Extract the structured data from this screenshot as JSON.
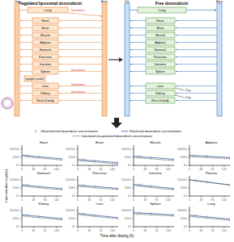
{
  "diagram": {
    "left": {
      "title": "Pegylated liposomal doxorubicin",
      "vein": "Vein",
      "artery": "Artery",
      "lung": {
        "label": "Lung",
        "release_label": "Doxorubicin"
      },
      "nodes": [
        {
          "label": "Heart"
        },
        {
          "label": "Brain"
        },
        {
          "label": "Muscle"
        },
        {
          "label": "Adipose"
        },
        {
          "label": "Stomach"
        },
        {
          "label": "Pancreas"
        },
        {
          "label": "Intestine"
        },
        {
          "label": "Spleen",
          "release_label": "Doxorubicin"
        },
        {
          "label": "Lymph center"
        },
        {
          "label": "Liver",
          "release_label": "Doxorubicin"
        },
        {
          "label": "Kidney",
          "release_label": "Doxorubicin"
        },
        {
          "label": "Rest of body"
        }
      ]
    },
    "right": {
      "title": "Free doxorubicin",
      "vein": "Vein",
      "artery": "Artery",
      "lung": {
        "label": "Lung"
      },
      "nodes": [
        {
          "label": "Heart"
        },
        {
          "label": "Brain"
        },
        {
          "label": "Muscle"
        },
        {
          "label": "Adipose"
        },
        {
          "label": "Stomach"
        },
        {
          "label": "Pancreas"
        },
        {
          "label": "Intestine"
        },
        {
          "label": "Spleen"
        },
        {
          "label": ""
        },
        {
          "label": "Liver",
          "clearance": {
            "main": "CL",
            "sub": "H"
          }
        },
        {
          "label": "Kidney",
          "clearance": {
            "main": "CL",
            "sub": "R"
          }
        },
        {
          "label": "Rest of body"
        }
      ]
    }
  },
  "chart_data": {
    "type": "line",
    "log": "y",
    "x_label": "Time after dosing (h)",
    "y_label": "Concentration (ng/mL)",
    "x": [
      0,
      24,
      48,
      72,
      96,
      120,
      144,
      168
    ],
    "xlim": [
      0,
      168
    ],
    "xticks": [
      0,
      48,
      96,
      144
    ],
    "ylim": [
      10,
      1000000
    ],
    "yticks": [
      10,
      1000,
      100000
    ],
    "series": [
      {
        "name": "Observed total doxorubicin concentrations",
        "key": "observed",
        "type": "scatter",
        "color": "#8c8c8c",
        "marker": "circle"
      },
      {
        "name": "Fitted total doxorubicin concentrations",
        "key": "fitted",
        "type": "line",
        "color": "#2f5ea8",
        "line_style": "solid"
      },
      {
        "name": "Calculated encapsulated doxorubicin concentrations",
        "key": "encapsulated",
        "type": "line",
        "color": "#555555",
        "line_style": "dashed"
      }
    ],
    "panels": [
      {
        "title": "Heart",
        "observed": [
          null,
          2200,
          null,
          1500,
          null,
          null,
          null,
          450
        ],
        "fitted": [
          4000,
          2500,
          1800,
          1300,
          1000,
          750,
          550,
          400
        ],
        "encapsulated": [
          2000,
          1300,
          900,
          650,
          500,
          380,
          280,
          200
        ]
      },
      {
        "title": "Brain",
        "observed": [
          null,
          250,
          null,
          120,
          null,
          null,
          null,
          50
        ],
        "fitted": [
          300,
          220,
          170,
          130,
          100,
          80,
          60,
          45
        ],
        "encapsulated": [
          150,
          110,
          85,
          65,
          50,
          40,
          30,
          22
        ]
      },
      {
        "title": "Muscle",
        "observed": [
          null,
          1600,
          null,
          800,
          null,
          null,
          null,
          300
        ],
        "fitted": [
          2000,
          1500,
          1150,
          900,
          700,
          540,
          420,
          330
        ],
        "encapsulated": [
          900,
          700,
          530,
          410,
          320,
          250,
          190,
          150
        ]
      },
      {
        "title": "Adipose",
        "observed": [
          null,
          2400,
          null,
          2000,
          null,
          null,
          null,
          900
        ],
        "fitted": [
          3000,
          2600,
          2200,
          1800,
          1500,
          1250,
          1050,
          880
        ],
        "encapsulated": [
          1500,
          1250,
          1050,
          880,
          740,
          620,
          520,
          430
        ]
      },
      {
        "title": "Stomach",
        "observed": [
          null,
          5000,
          null,
          2000,
          null,
          null,
          null,
          700
        ],
        "fitted": [
          6000,
          4200,
          3000,
          2200,
          1600,
          1200,
          880,
          650
        ],
        "encapsulated": [
          3000,
          2100,
          1500,
          1100,
          800,
          600,
          440,
          320
        ]
      },
      {
        "title": "Pancreas",
        "observed": [
          null,
          4000,
          null,
          2500,
          null,
          null,
          null,
          700
        ],
        "fitted": [
          5000,
          3800,
          2900,
          2200,
          1700,
          1300,
          1000,
          760
        ],
        "encapsulated": [
          2500,
          1900,
          1450,
          1100,
          850,
          650,
          500,
          380
        ]
      },
      {
        "title": "Intestine",
        "observed": [
          null,
          6000,
          null,
          2500,
          null,
          null,
          null,
          600
        ],
        "fitted": [
          8000,
          5500,
          3800,
          2700,
          1900,
          1350,
          950,
          670
        ],
        "encapsulated": [
          4000,
          2700,
          1900,
          1350,
          950,
          670,
          470,
          330
        ]
      },
      {
        "title": "Plasma",
        "observed": [
          null,
          72000,
          null,
          28000,
          null,
          null,
          null,
          6000
        ],
        "fitted": [
          100000,
          70000,
          45000,
          30000,
          20000,
          13000,
          8500,
          5500
        ],
        "encapsulated": [
          95000,
          66000,
          43000,
          28500,
          19000,
          12300,
          8000,
          5200
        ]
      },
      {
        "title": "Kidney",
        "observed": [
          null,
          7000,
          null,
          3000,
          null,
          null,
          null,
          1000
        ],
        "fitted": [
          9000,
          6500,
          4700,
          3400,
          2500,
          1800,
          1300,
          950
        ],
        "encapsulated": [
          4500,
          3200,
          2300,
          1700,
          1250,
          900,
          650,
          470
        ]
      },
      {
        "title": "Liver",
        "observed": [
          null,
          15000,
          null,
          6000,
          null,
          null,
          null,
          1500
        ],
        "fitted": [
          20000,
          14000,
          9800,
          6900,
          4800,
          3400,
          2400,
          1700
        ],
        "encapsulated": [
          10000,
          7000,
          4900,
          3400,
          2400,
          1700,
          1200,
          850
        ]
      },
      {
        "title": "Spleen",
        "observed": [
          null,
          26000,
          null,
          16000,
          null,
          null,
          null,
          9000
        ],
        "fitted": [
          30000,
          25000,
          21000,
          17500,
          14500,
          12000,
          10000,
          8300
        ],
        "encapsulated": [
          15000,
          12500,
          10500,
          8700,
          7200,
          6000,
          5000,
          4100
        ]
      },
      {
        "title": "Lung",
        "observed": [
          null,
          5500,
          null,
          2400,
          null,
          null,
          null,
          800
        ],
        "fitted": [
          7000,
          5000,
          3600,
          2600,
          1900,
          1400,
          1000,
          720
        ],
        "encapsulated": [
          3500,
          2500,
          1800,
          1300,
          950,
          700,
          500,
          360
        ]
      }
    ]
  }
}
